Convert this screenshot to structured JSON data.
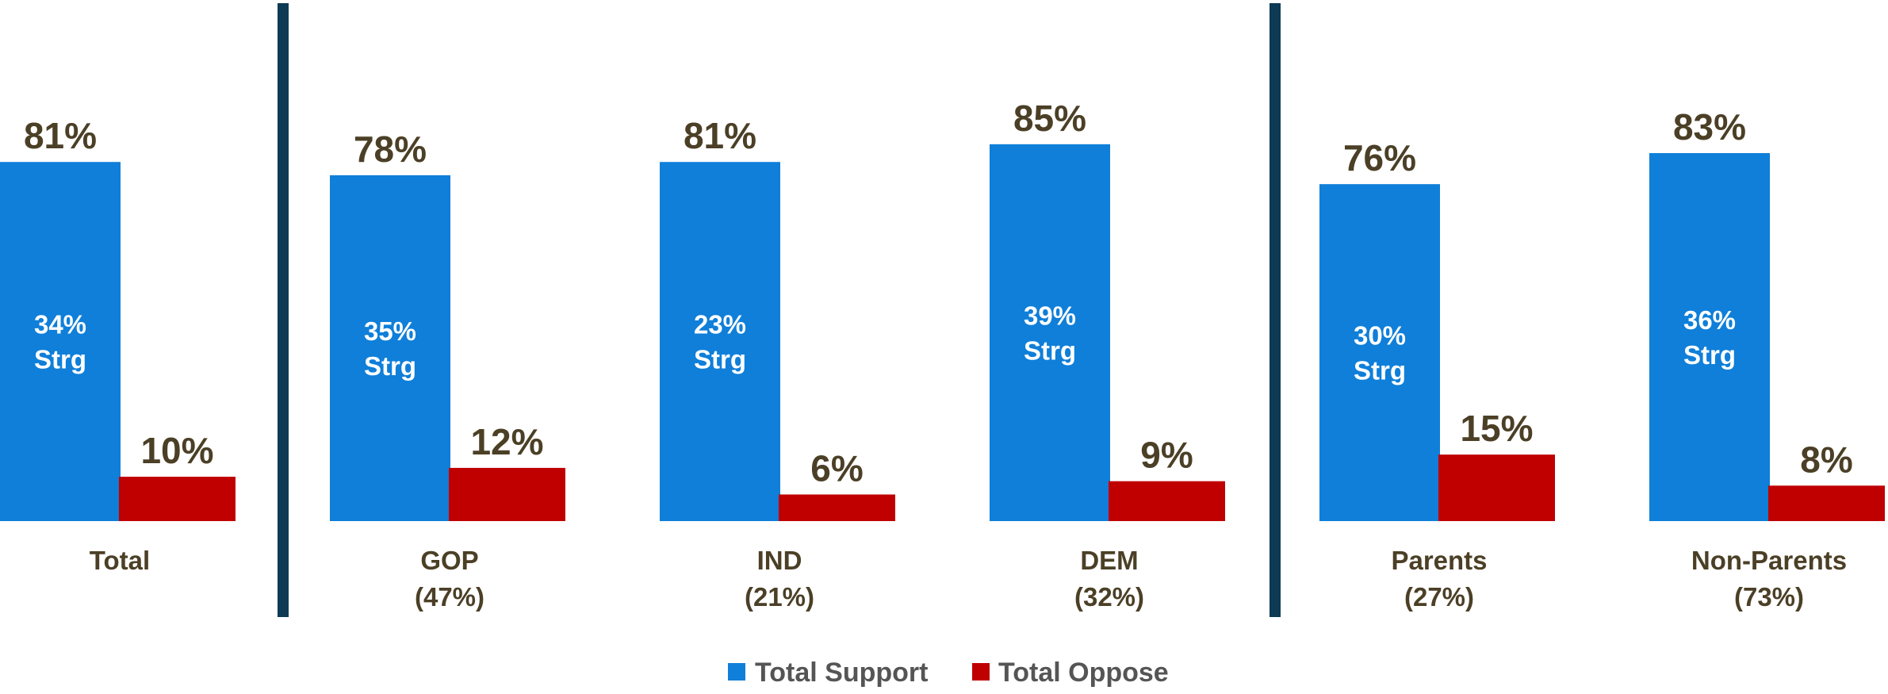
{
  "chart_data": {
    "type": "bar",
    "categories": [
      {
        "name": "Total",
        "share": ""
      },
      {
        "name": "GOP",
        "share": "(47%)"
      },
      {
        "name": "IND",
        "share": "(21%)"
      },
      {
        "name": "DEM",
        "share": "(32%)"
      },
      {
        "name": "Parents",
        "share": "(27%)"
      },
      {
        "name": "Non-Parents",
        "share": "(73%)"
      }
    ],
    "series": [
      {
        "name": "Total Support",
        "color": "#0f7fd9",
        "values": [
          81,
          78,
          81,
          85,
          76,
          83
        ],
        "labels": [
          "81%",
          "78%",
          "81%",
          "85%",
          "76%",
          "83%"
        ]
      },
      {
        "name": "Total Oppose",
        "color": "#c00000",
        "values": [
          10,
          12,
          6,
          9,
          15,
          8
        ],
        "labels": [
          "10%",
          "12%",
          "6%",
          "9%",
          "15%",
          "8%"
        ]
      }
    ],
    "strong_support": {
      "values": [
        34,
        35,
        23,
        39,
        30,
        36
      ],
      "labels": [
        [
          "34%",
          "Strg"
        ],
        [
          "35%",
          "Strg"
        ],
        [
          "23%",
          "Strg"
        ],
        [
          "39%",
          "Strg"
        ],
        [
          "30%",
          "Strg"
        ],
        [
          "36%",
          "Strg"
        ]
      ]
    },
    "ylim": [
      0,
      100
    ],
    "grid": false,
    "legend": "bottom",
    "divider_color": "#0d3a54",
    "label_color": "#4b3f26"
  }
}
